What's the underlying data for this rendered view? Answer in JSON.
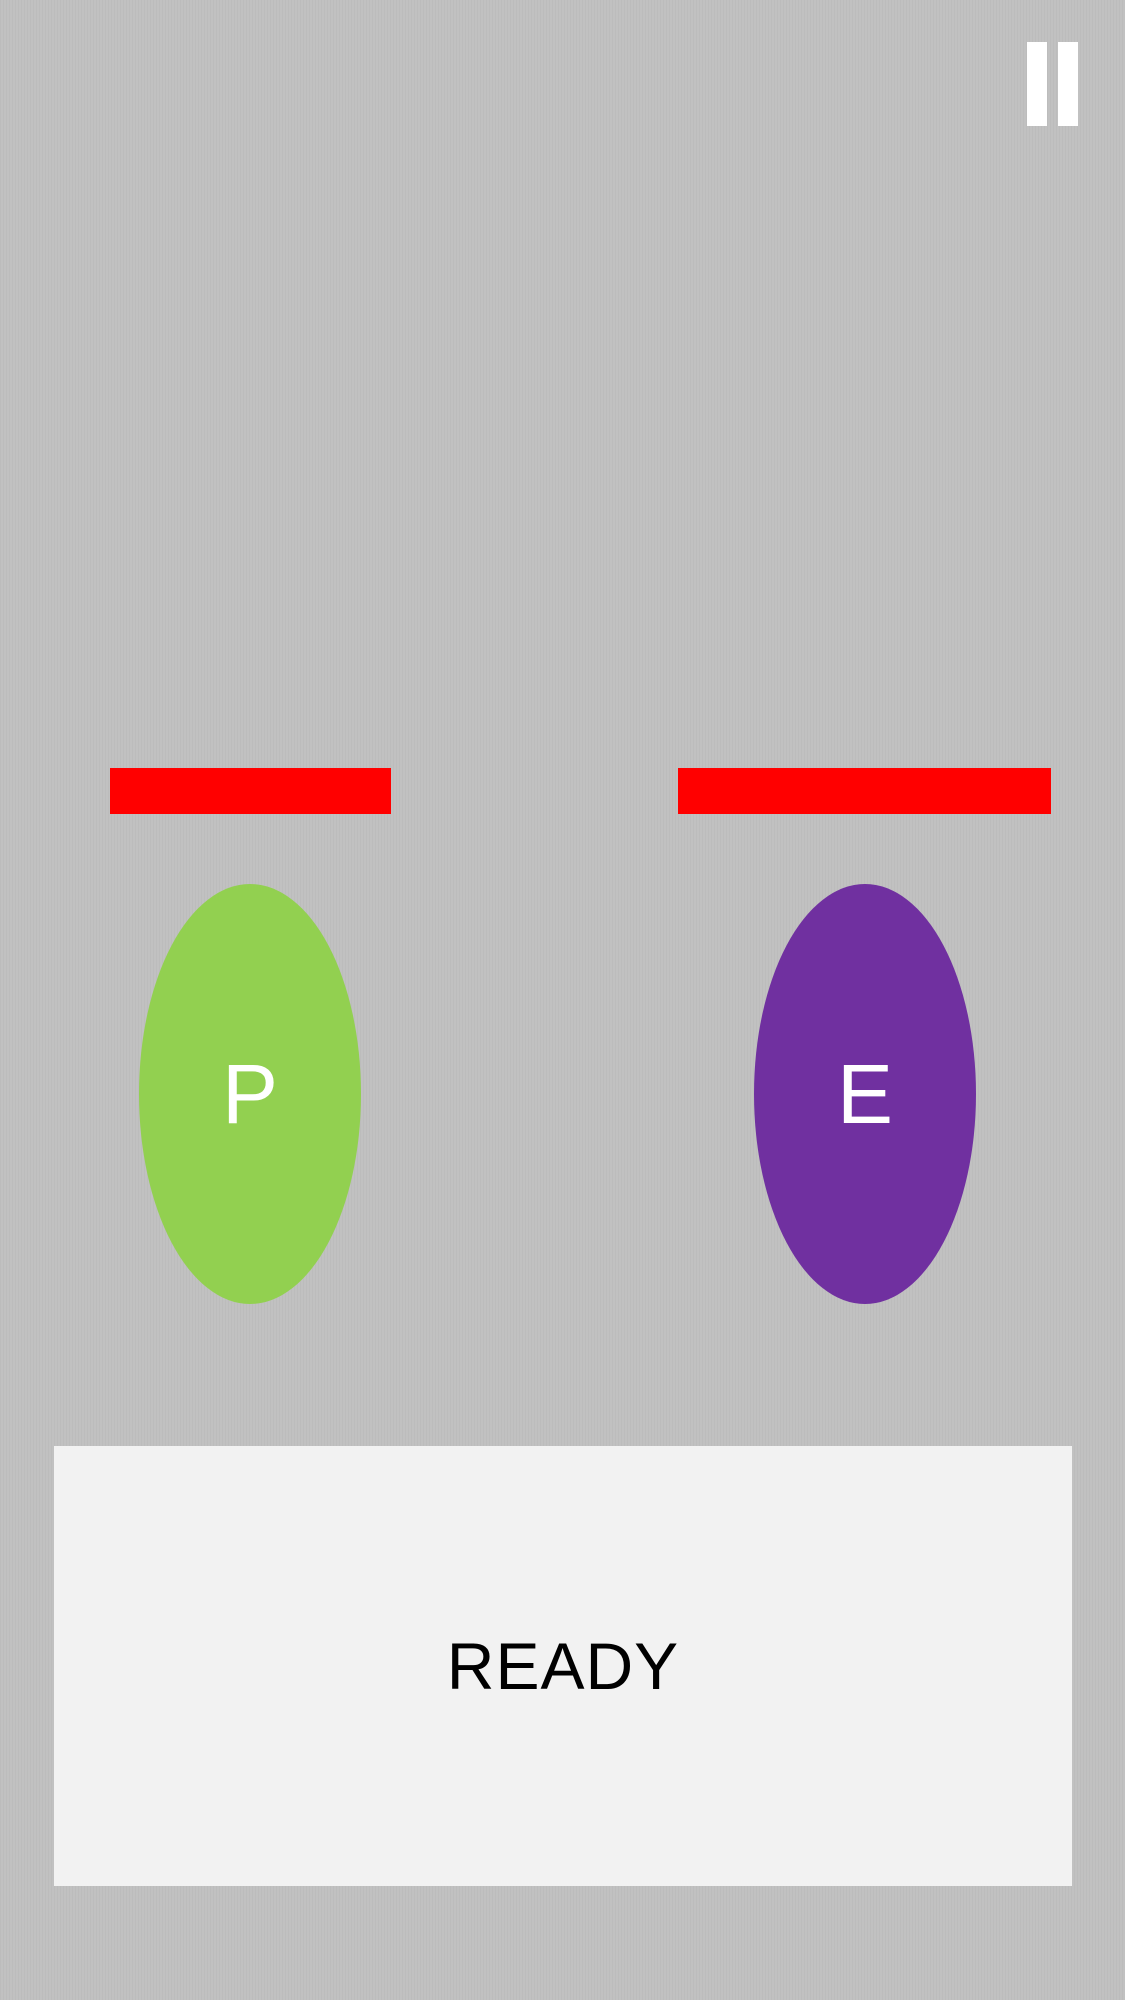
{
  "pause": {
    "icon": "pause-icon"
  },
  "player": {
    "letter": "P",
    "color": "#92d050",
    "health": 0.75
  },
  "enemy": {
    "letter": "E",
    "color": "#7030a0",
    "health": 1.0
  },
  "health_bar_color": "#ff0000",
  "ready": {
    "label": "READY"
  }
}
